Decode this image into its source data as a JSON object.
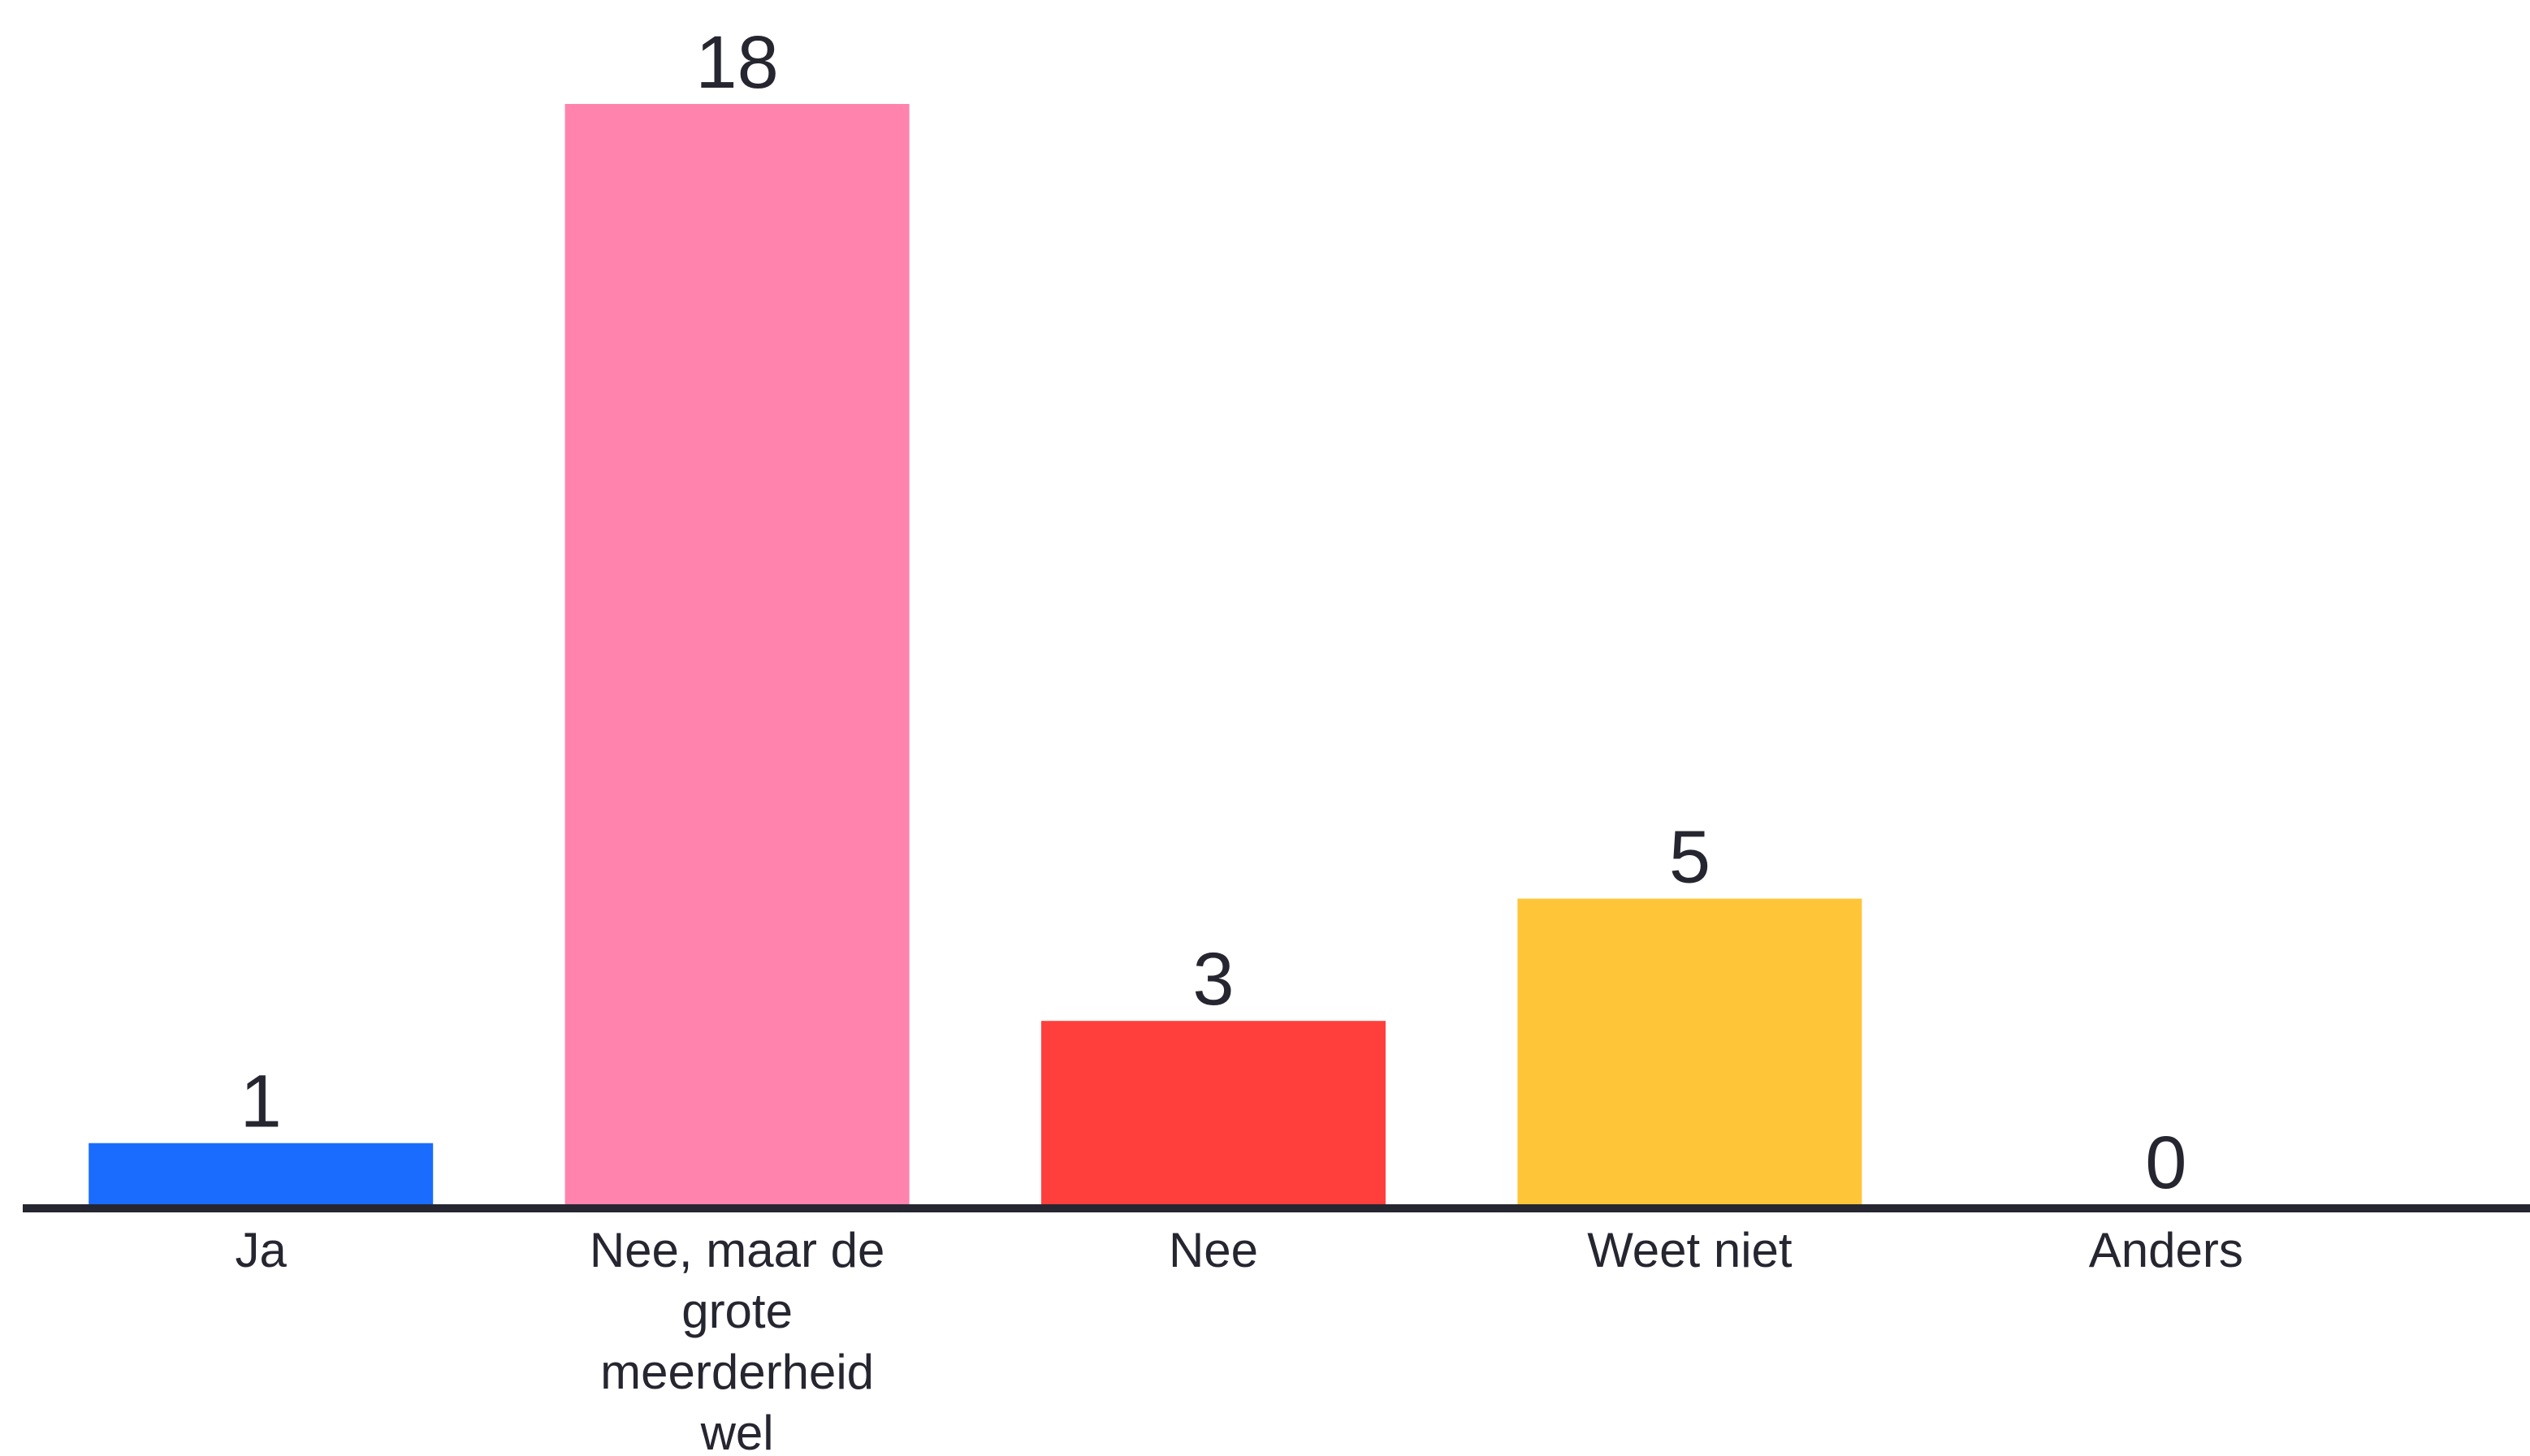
{
  "chart_data": {
    "type": "bar",
    "categories": [
      [
        "Ja"
      ],
      [
        "Nee, maar de",
        "grote",
        "meerderheid",
        "wel"
      ],
      [
        "Nee"
      ],
      [
        "Weet niet"
      ],
      [
        "Anders"
      ]
    ],
    "values": [
      1,
      18,
      3,
      5,
      0
    ],
    "colors": [
      "#1a6cff",
      "#ff83ad",
      "#ff3f3b",
      "#ffc539",
      "#cccccc"
    ],
    "axis_color": "#262631",
    "ylim": [
      0,
      18
    ],
    "grid": false,
    "legend": "none"
  }
}
